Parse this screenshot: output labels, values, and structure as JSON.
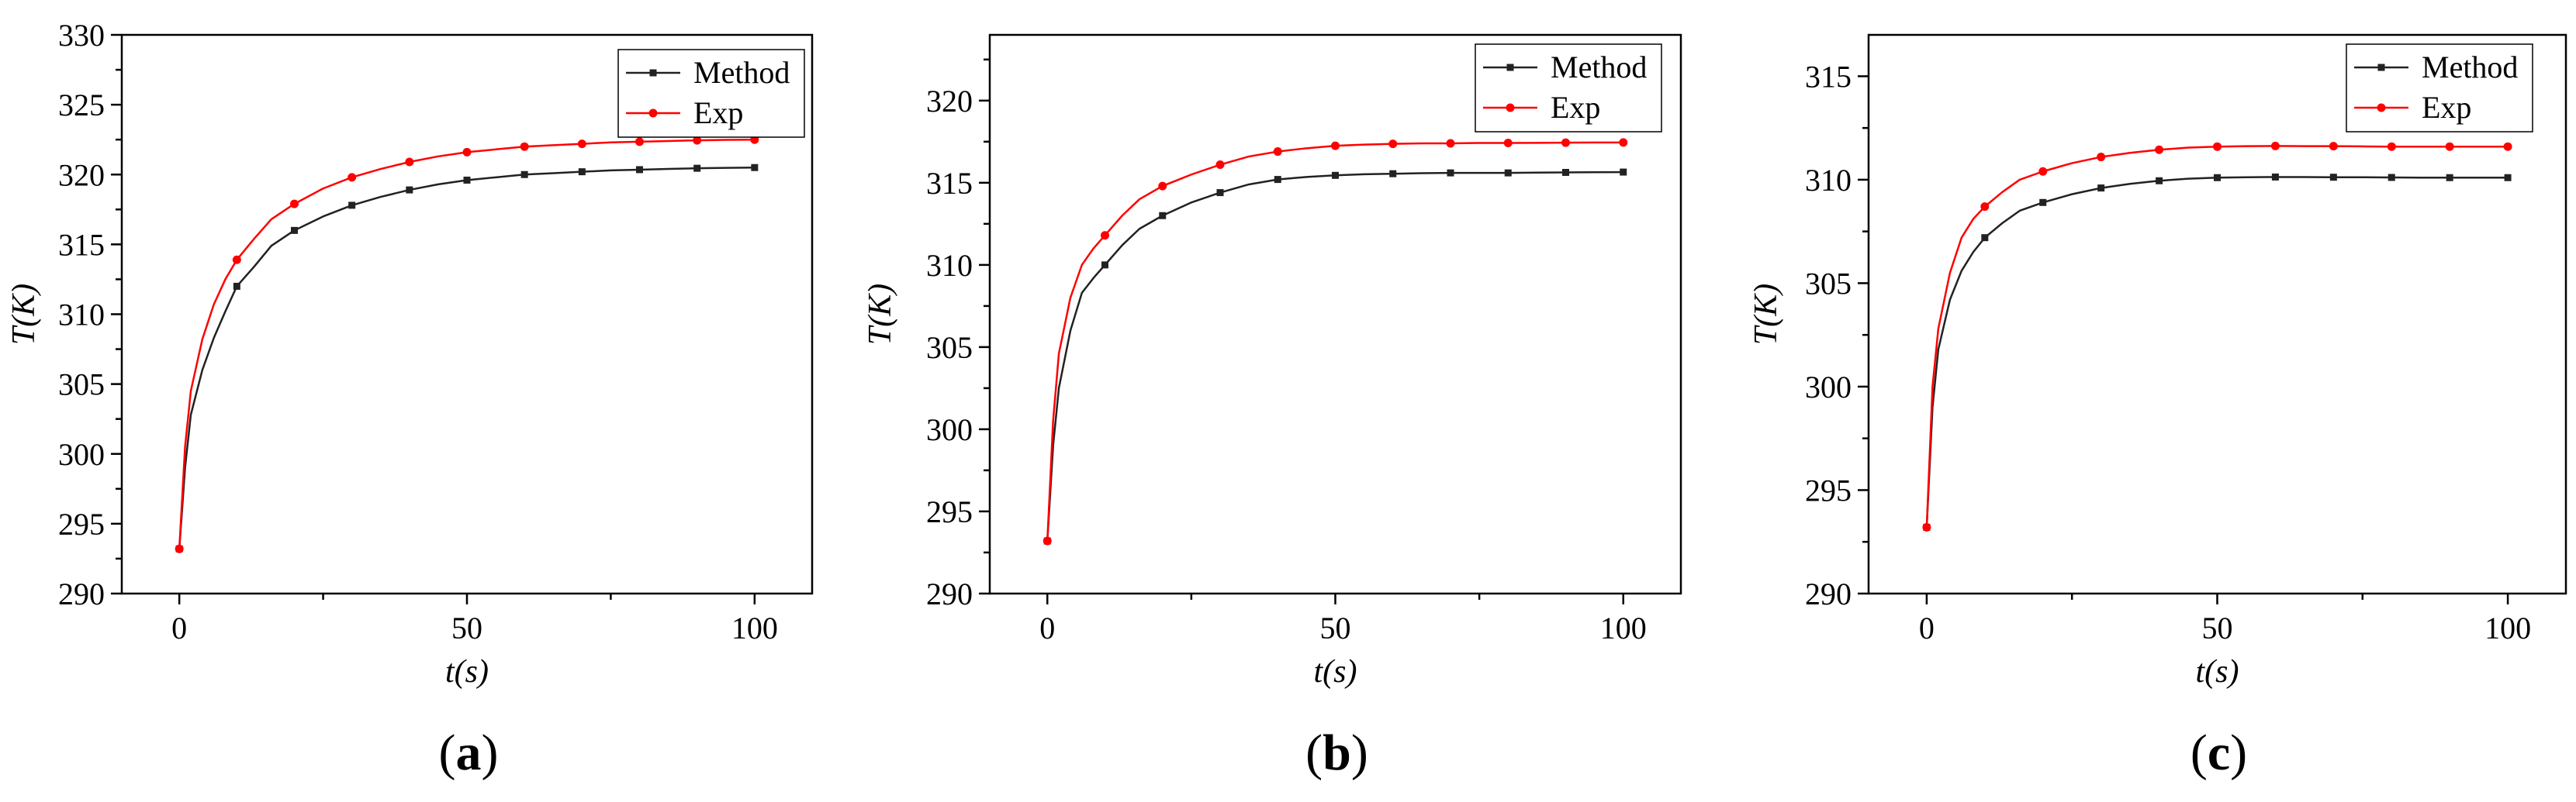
{
  "chart_data": [
    {
      "type": "line",
      "panel_label": "a",
      "xlabel": "t(s)",
      "ylabel": "T(K)",
      "xlim": [
        -10,
        110
      ],
      "ylim": [
        290,
        330
      ],
      "xticks": [
        0,
        50,
        100
      ],
      "yticks": [
        290,
        295,
        300,
        305,
        310,
        315,
        320,
        325,
        330
      ],
      "legend_position": "top-right",
      "series": [
        {
          "name": "Method",
          "color": "#222222",
          "marker": "square",
          "x": [
            0,
            1,
            2,
            4,
            6,
            8,
            10,
            13,
            16,
            20,
            25,
            30,
            35,
            40,
            45,
            50,
            55,
            60,
            65,
            70,
            75,
            80,
            85,
            90,
            95,
            100
          ],
          "y": [
            293.2,
            299.0,
            302.8,
            306.0,
            308.3,
            310.2,
            312.0,
            313.4,
            314.9,
            316.0,
            317.0,
            317.8,
            318.4,
            318.9,
            319.3,
            319.6,
            319.8,
            320.0,
            320.1,
            320.2,
            320.3,
            320.35,
            320.4,
            320.45,
            320.48,
            320.5
          ],
          "marker_x": [
            0,
            10,
            20,
            30,
            40,
            50,
            60,
            70,
            80,
            90,
            100
          ]
        },
        {
          "name": "Exp",
          "color": "#ff0000",
          "marker": "circle",
          "x": [
            0,
            1,
            2,
            4,
            6,
            8,
            10,
            13,
            16,
            20,
            25,
            30,
            35,
            40,
            45,
            50,
            55,
            60,
            65,
            70,
            75,
            80,
            85,
            90,
            95,
            100
          ],
          "y": [
            293.2,
            300.5,
            304.5,
            308.2,
            310.7,
            312.5,
            313.9,
            315.4,
            316.8,
            317.9,
            319.0,
            319.8,
            320.4,
            320.9,
            321.3,
            321.6,
            321.8,
            322.0,
            322.1,
            322.2,
            322.3,
            322.35,
            322.4,
            322.45,
            322.48,
            322.5
          ],
          "marker_x": [
            0,
            10,
            20,
            30,
            40,
            50,
            60,
            70,
            80,
            90,
            100
          ]
        }
      ]
    },
    {
      "type": "line",
      "panel_label": "b",
      "xlabel": "t(s)",
      "ylabel": "T(K)",
      "xlim": [
        -10,
        110
      ],
      "ylim": [
        290,
        324
      ],
      "xticks": [
        0,
        50,
        100
      ],
      "yticks": [
        290,
        295,
        300,
        305,
        310,
        315,
        320
      ],
      "legend_position": "top-right",
      "series": [
        {
          "name": "Method",
          "color": "#222222",
          "marker": "square",
          "x": [
            0,
            1,
            2,
            4,
            6,
            8,
            10,
            13,
            16,
            20,
            25,
            30,
            35,
            40,
            45,
            50,
            55,
            60,
            65,
            70,
            75,
            80,
            85,
            90,
            95,
            100
          ],
          "y": [
            293.2,
            299.0,
            302.5,
            306.0,
            308.3,
            309.2,
            310.0,
            311.2,
            312.2,
            313.0,
            313.8,
            314.4,
            314.9,
            315.2,
            315.35,
            315.45,
            315.52,
            315.55,
            315.58,
            315.6,
            315.6,
            315.6,
            315.62,
            315.63,
            315.64,
            315.65
          ],
          "marker_x": [
            0,
            10,
            20,
            30,
            40,
            50,
            60,
            70,
            80,
            90,
            100
          ]
        },
        {
          "name": "Exp",
          "color": "#ff0000",
          "marker": "circle",
          "x": [
            0,
            1,
            2,
            4,
            6,
            8,
            10,
            13,
            16,
            20,
            25,
            30,
            35,
            40,
            45,
            50,
            55,
            60,
            65,
            70,
            75,
            80,
            85,
            90,
            95,
            100
          ],
          "y": [
            293.2,
            300.5,
            304.6,
            308.0,
            310.0,
            311.0,
            311.8,
            313.0,
            314.0,
            314.8,
            315.5,
            316.1,
            316.6,
            316.9,
            317.1,
            317.25,
            317.32,
            317.37,
            317.4,
            317.4,
            317.42,
            317.42,
            317.43,
            317.44,
            317.45,
            317.45
          ],
          "marker_x": [
            0,
            10,
            20,
            30,
            40,
            50,
            60,
            70,
            80,
            90,
            100
          ]
        }
      ]
    },
    {
      "type": "line",
      "panel_label": "c",
      "xlabel": "t(s)",
      "ylabel": "T(K)",
      "xlim": [
        -10,
        110
      ],
      "ylim": [
        290,
        317
      ],
      "xticks": [
        0,
        50,
        100
      ],
      "yticks": [
        290,
        295,
        300,
        305,
        310,
        315
      ],
      "legend_position": "top-right",
      "series": [
        {
          "name": "Method",
          "color": "#222222",
          "marker": "square",
          "x": [
            0,
            1,
            2,
            4,
            6,
            8,
            10,
            13,
            16,
            20,
            25,
            30,
            35,
            40,
            45,
            50,
            55,
            60,
            65,
            70,
            75,
            80,
            85,
            90,
            95,
            100
          ],
          "y": [
            293.2,
            299.0,
            301.8,
            304.2,
            305.6,
            306.5,
            307.2,
            307.9,
            308.5,
            308.9,
            309.3,
            309.6,
            309.8,
            309.95,
            310.05,
            310.1,
            310.12,
            310.13,
            310.13,
            310.12,
            310.12,
            310.11,
            310.1,
            310.1,
            310.1,
            310.1
          ],
          "marker_x": [
            0,
            10,
            20,
            30,
            40,
            50,
            60,
            70,
            80,
            90,
            100
          ]
        },
        {
          "name": "Exp",
          "color": "#ff0000",
          "marker": "circle",
          "x": [
            0,
            1,
            2,
            4,
            6,
            8,
            10,
            13,
            16,
            20,
            25,
            30,
            35,
            40,
            45,
            50,
            55,
            60,
            65,
            70,
            75,
            80,
            85,
            90,
            95,
            100
          ],
          "y": [
            293.2,
            300.0,
            302.8,
            305.5,
            307.2,
            308.1,
            308.7,
            309.4,
            310.0,
            310.4,
            310.8,
            311.1,
            311.3,
            311.45,
            311.55,
            311.6,
            311.62,
            311.63,
            311.62,
            311.62,
            311.61,
            311.6,
            311.6,
            311.6,
            311.6,
            311.6
          ],
          "marker_x": [
            0,
            10,
            20,
            30,
            40,
            50,
            60,
            70,
            80,
            90,
            100
          ]
        }
      ]
    }
  ]
}
